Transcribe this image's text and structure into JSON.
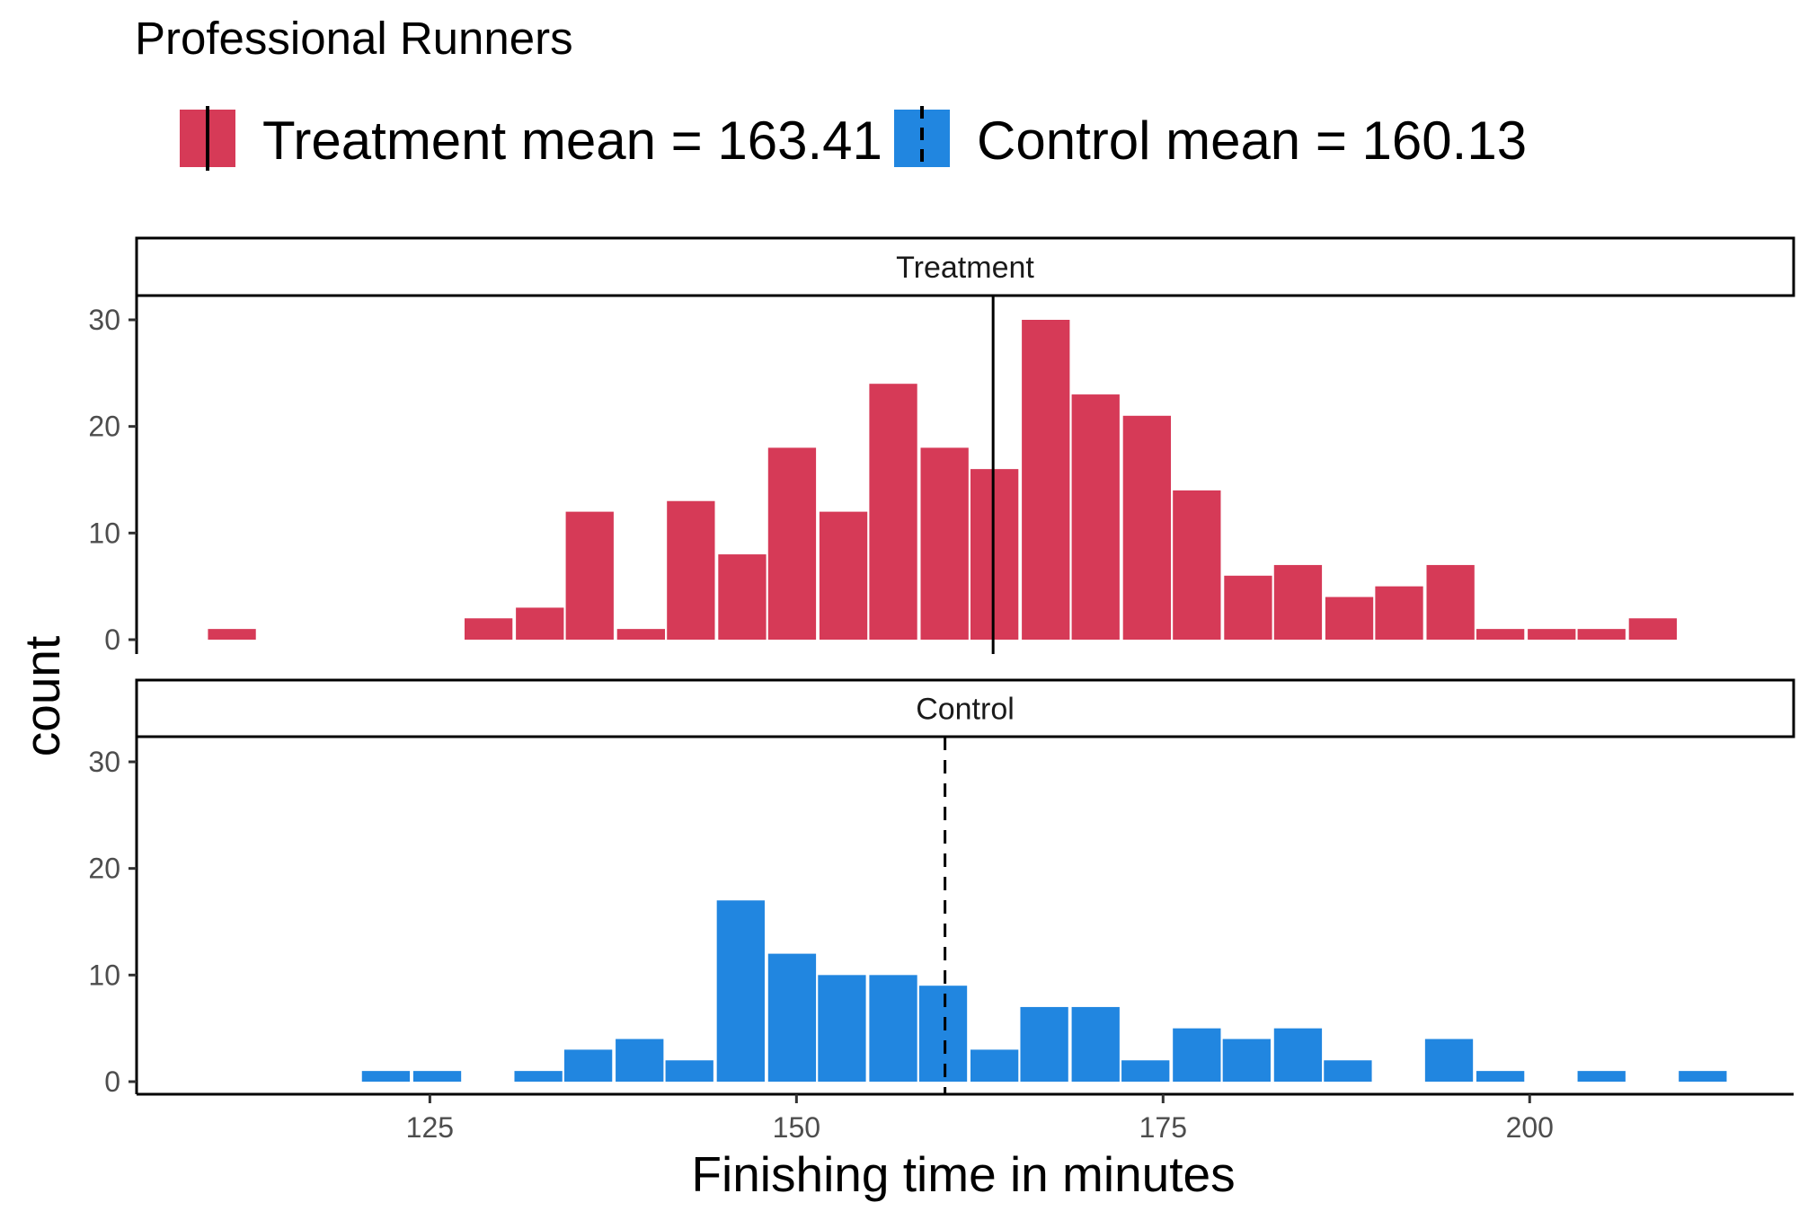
{
  "chart_data": {
    "type": "bar",
    "title": "Professional Runners",
    "xlabel": "Finishing time in minutes",
    "ylabel": "count",
    "xlim": [
      105,
      218
    ],
    "ylim": [
      0,
      30
    ],
    "x_ticks": [
      125,
      150,
      175,
      200
    ],
    "y_ticks": [
      0,
      10,
      20,
      30
    ],
    "bin_width": 3.45,
    "grid": false,
    "legend_position": "top-left",
    "legend": [
      {
        "label": "Treatment mean = 163.41",
        "color": "#D63A57",
        "line": "solid"
      },
      {
        "label": "Control mean = 160.13",
        "color": "#2186E0",
        "line": "dashed"
      }
    ],
    "panels": [
      {
        "name": "Treatment",
        "color": "#D63A57",
        "mean": 163.41,
        "line": "solid",
        "bins": [
          {
            "x": 111.5,
            "count": 1
          },
          {
            "x": 129.0,
            "count": 2
          },
          {
            "x": 132.5,
            "count": 3
          },
          {
            "x": 135.9,
            "count": 12
          },
          {
            "x": 139.4,
            "count": 1
          },
          {
            "x": 142.8,
            "count": 13
          },
          {
            "x": 146.3,
            "count": 8
          },
          {
            "x": 149.7,
            "count": 18
          },
          {
            "x": 153.2,
            "count": 12
          },
          {
            "x": 156.6,
            "count": 24
          },
          {
            "x": 160.1,
            "count": 18
          },
          {
            "x": 163.5,
            "count": 16
          },
          {
            "x": 167.0,
            "count": 30
          },
          {
            "x": 170.4,
            "count": 23
          },
          {
            "x": 173.9,
            "count": 21
          },
          {
            "x": 177.3,
            "count": 14
          },
          {
            "x": 180.8,
            "count": 6
          },
          {
            "x": 184.2,
            "count": 7
          },
          {
            "x": 187.7,
            "count": 4
          },
          {
            "x": 191.1,
            "count": 5
          },
          {
            "x": 194.6,
            "count": 7
          },
          {
            "x": 198.0,
            "count": 1
          },
          {
            "x": 201.5,
            "count": 1
          },
          {
            "x": 204.9,
            "count": 1
          },
          {
            "x": 208.4,
            "count": 2
          }
        ]
      },
      {
        "name": "Control",
        "color": "#2186E0",
        "mean": 160.13,
        "line": "dashed",
        "bins": [
          {
            "x": 122.0,
            "count": 1
          },
          {
            "x": 125.5,
            "count": 1
          },
          {
            "x": 132.4,
            "count": 1
          },
          {
            "x": 135.8,
            "count": 3
          },
          {
            "x": 139.3,
            "count": 4
          },
          {
            "x": 142.7,
            "count": 2
          },
          {
            "x": 146.2,
            "count": 17
          },
          {
            "x": 149.7,
            "count": 12
          },
          {
            "x": 153.1,
            "count": 10
          },
          {
            "x": 156.6,
            "count": 10
          },
          {
            "x": 160.0,
            "count": 9
          },
          {
            "x": 163.5,
            "count": 3
          },
          {
            "x": 166.9,
            "count": 7
          },
          {
            "x": 170.4,
            "count": 7
          },
          {
            "x": 173.8,
            "count": 2
          },
          {
            "x": 177.3,
            "count": 5
          },
          {
            "x": 180.7,
            "count": 4
          },
          {
            "x": 184.2,
            "count": 5
          },
          {
            "x": 187.6,
            "count": 2
          },
          {
            "x": 194.5,
            "count": 4
          },
          {
            "x": 198.0,
            "count": 1
          },
          {
            "x": 204.9,
            "count": 1
          },
          {
            "x": 211.8,
            "count": 1
          }
        ]
      }
    ]
  }
}
